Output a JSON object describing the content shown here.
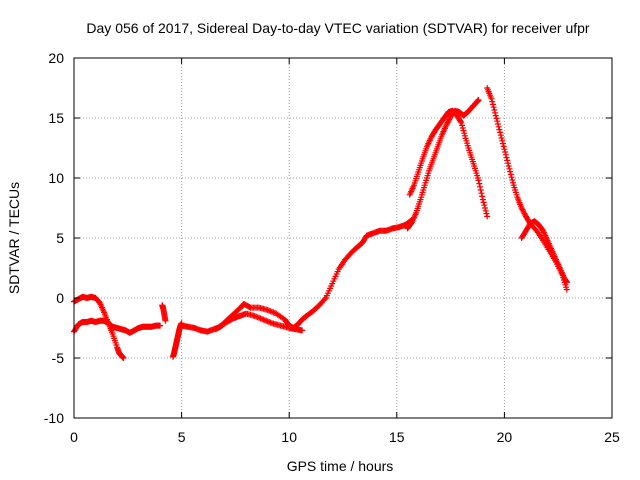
{
  "chart_data": {
    "type": "scatter",
    "title": "Day 056 of 2017, Sidereal Day-to-day VTEC variation (SDTVAR) for receiver ufpr",
    "xlabel": "GPS time / hours",
    "ylabel": "SDTVAR / TECUs",
    "xlim": [
      0,
      25
    ],
    "ylim": [
      -10,
      20
    ],
    "xticks": [
      "0",
      "5",
      "10",
      "15",
      "20",
      "25"
    ],
    "yticks": [
      "-10",
      "-5",
      "0",
      "5",
      "10",
      "15",
      "20"
    ],
    "grid": true,
    "marker": "+",
    "color": "#ff0000",
    "series": [
      {
        "x": [
          0.0,
          0.2,
          0.4,
          0.6,
          0.8,
          1.0,
          1.2,
          1.4,
          1.6,
          1.8,
          2.0,
          2.2,
          2.4,
          2.6,
          2.8,
          3.0,
          3.2,
          3.4,
          3.6,
          3.8,
          4.0
        ],
        "y": [
          -2.8,
          -2.2,
          -2.0,
          -2.0,
          -1.9,
          -2.0,
          -1.9,
          -1.9,
          -2.1,
          -2.4,
          -2.5,
          -2.6,
          -2.7,
          -2.9,
          -2.7,
          -2.5,
          -2.4,
          -2.4,
          -2.4,
          -2.3,
          -2.3
        ]
      },
      {
        "x": [
          0.0,
          0.2,
          0.4,
          0.6,
          0.8,
          1.0,
          1.2,
          1.4,
          1.6,
          1.8,
          2.0,
          2.1,
          2.2,
          2.3
        ],
        "y": [
          -0.3,
          -0.1,
          0.1,
          0.0,
          0.1,
          0.0,
          -0.4,
          -1.2,
          -2.1,
          -3.0,
          -4.1,
          -4.6,
          -4.8,
          -5.0
        ]
      },
      {
        "x": [
          4.1,
          4.15,
          4.2,
          4.25
        ],
        "y": [
          -0.6,
          -0.9,
          -1.4,
          -1.9
        ]
      },
      {
        "x": [
          4.6,
          4.65,
          4.7,
          4.75,
          4.8,
          4.85,
          4.9,
          4.95,
          5.0
        ],
        "y": [
          -4.9,
          -4.6,
          -4.2,
          -3.8,
          -3.4,
          -3.0,
          -2.6,
          -2.3,
          -2.1
        ]
      },
      {
        "x": [
          5.0,
          5.3,
          5.6,
          5.9,
          6.2,
          6.5,
          6.8,
          7.1,
          7.4,
          7.7,
          8.0,
          8.4,
          8.8,
          9.2,
          9.6,
          10.0,
          10.3,
          10.6
        ],
        "y": [
          -2.3,
          -2.4,
          -2.5,
          -2.7,
          -2.8,
          -2.6,
          -2.4,
          -2.0,
          -1.7,
          -1.5,
          -1.3,
          -1.5,
          -1.8,
          -2.1,
          -2.3,
          -2.5,
          -2.6,
          -2.7
        ]
      },
      {
        "x": [
          6.6,
          6.9,
          7.2,
          7.5,
          7.8,
          7.9,
          8.2,
          8.6,
          9.0,
          9.4,
          9.8,
          10.0,
          10.2,
          10.4,
          10.6,
          10.8,
          11.1,
          11.4,
          11.7
        ],
        "y": [
          -2.6,
          -2.2,
          -1.7,
          -1.2,
          -0.7,
          -0.5,
          -0.8,
          -0.8,
          -1.0,
          -1.3,
          -1.8,
          -2.3,
          -2.5,
          -2.2,
          -1.8,
          -1.5,
          -1.1,
          -0.6,
          0.0
        ]
      },
      {
        "x": [
          11.7,
          12.0,
          12.3,
          12.6,
          12.9,
          13.2,
          13.4,
          13.6,
          13.9,
          14.2,
          14.5,
          14.8,
          15.1,
          15.4,
          15.7
        ],
        "y": [
          0.0,
          1.2,
          2.4,
          3.2,
          3.8,
          4.3,
          4.6,
          5.2,
          5.4,
          5.6,
          5.6,
          5.8,
          5.9,
          6.1,
          6.5
        ]
      },
      {
        "x": [
          15.5,
          15.7,
          15.9,
          16.1,
          16.3,
          16.5,
          16.7,
          16.9,
          17.1,
          17.3,
          17.5,
          17.7,
          17.9,
          18.1,
          18.3,
          18.5,
          18.7,
          18.8
        ],
        "y": [
          5.8,
          6.3,
          7.1,
          8.2,
          9.4,
          10.6,
          11.6,
          12.6,
          13.6,
          14.4,
          15.1,
          15.6,
          15.5,
          15.2,
          15.5,
          15.9,
          16.3,
          16.5
        ]
      },
      {
        "x": [
          15.6,
          15.8,
          16.0,
          16.2,
          16.4,
          16.6,
          16.8,
          17.0,
          17.2,
          17.4,
          17.6,
          17.8,
          18.0,
          18.2,
          18.4,
          18.6,
          18.8,
          19.0,
          19.2
        ],
        "y": [
          8.6,
          9.4,
          10.5,
          11.6,
          12.6,
          13.4,
          14.0,
          14.5,
          15.0,
          15.5,
          15.6,
          15.2,
          14.6,
          13.3,
          12.1,
          11.0,
          9.8,
          8.2,
          6.8
        ]
      },
      {
        "x": [
          19.2,
          19.4,
          19.6,
          19.8,
          20.0,
          20.2,
          20.4,
          20.6,
          20.8,
          21.0,
          21.2,
          21.5,
          21.8,
          22.1,
          22.4,
          22.7,
          22.9
        ],
        "y": [
          17.5,
          16.6,
          15.2,
          13.8,
          12.4,
          11.0,
          9.6,
          8.4,
          7.5,
          6.8,
          6.2,
          5.6,
          4.8,
          3.9,
          3.0,
          1.9,
          0.7
        ]
      },
      {
        "x": [
          20.8,
          21.0,
          21.2,
          21.4,
          21.6,
          21.8,
          22.0,
          22.2,
          22.4,
          22.6,
          22.8,
          22.9
        ],
        "y": [
          5.0,
          5.6,
          6.2,
          6.4,
          6.1,
          5.6,
          4.8,
          4.0,
          3.2,
          2.4,
          1.6,
          1.3
        ]
      }
    ]
  }
}
